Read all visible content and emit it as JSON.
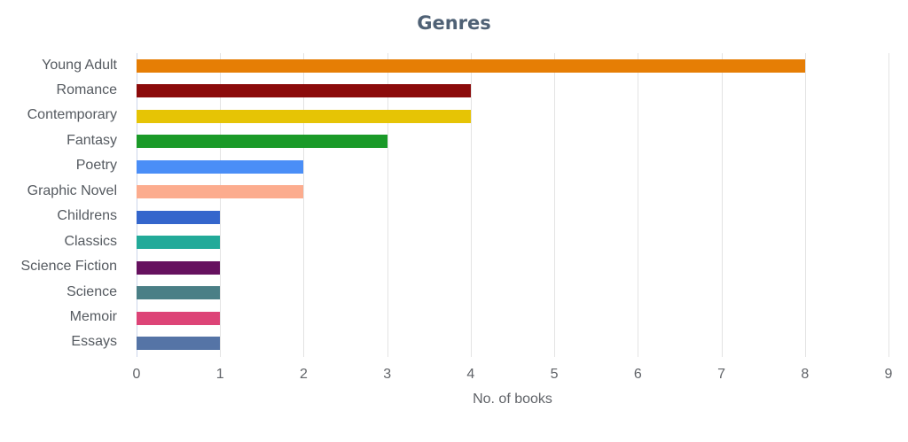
{
  "chart_data": {
    "type": "bar",
    "orientation": "horizontal",
    "title": "Genres",
    "xlabel": "No. of books",
    "ylabel": "",
    "xlim": [
      0,
      9
    ],
    "grid": true,
    "legend": false,
    "x_ticks": [
      "0",
      "1",
      "2",
      "3",
      "4",
      "5",
      "6",
      "7",
      "8",
      "9"
    ],
    "categories": [
      "Young Adult",
      "Romance",
      "Contemporary",
      "Fantasy",
      "Poetry",
      "Graphic Novel",
      "Childrens",
      "Classics",
      "Science Fiction",
      "Science",
      "Memoir",
      "Essays"
    ],
    "values": [
      8,
      4,
      4,
      3,
      2,
      2,
      1,
      1,
      1,
      1,
      1,
      1
    ],
    "colors": [
      "#e67e05",
      "#8b0a0a",
      "#e6c405",
      "#1a9a28",
      "#4a8ef7",
      "#fcac8e",
      "#3466cc",
      "#22aa99",
      "#66115f",
      "#4a7f86",
      "#dd4477",
      "#5574a6"
    ]
  }
}
